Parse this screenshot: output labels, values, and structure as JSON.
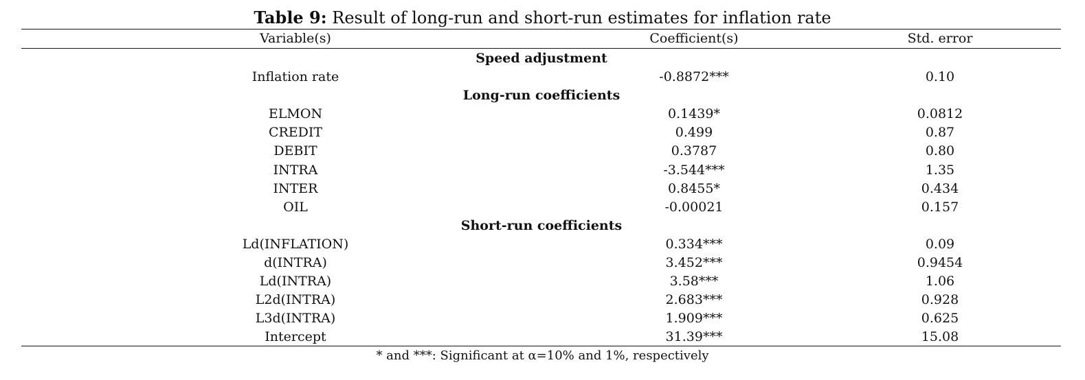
{
  "caption": {
    "label": "Table 9:",
    "text": " Result of long-run and short-run estimates for inflation rate"
  },
  "header": {
    "variable": "Variable(s)",
    "coefficient": "Coefficient(s)",
    "std_error": "Std. error"
  },
  "sections": [
    {
      "title": "Speed adjustment",
      "rows": [
        {
          "variable": "Inflation rate",
          "coefficient": "-0.8872***",
          "std_error": "0.10"
        }
      ]
    },
    {
      "title": "Long-run coefficients",
      "rows": [
        {
          "variable": "ELMON",
          "coefficient": "0.1439*",
          "std_error": "0.0812"
        },
        {
          "variable": "CREDIT",
          "coefficient": "0.499",
          "std_error": "0.87"
        },
        {
          "variable": "DEBIT",
          "coefficient": "0.3787",
          "std_error": "0.80"
        },
        {
          "variable": "INTRA",
          "coefficient": "-3.544***",
          "std_error": "1.35"
        },
        {
          "variable": "INTER",
          "coefficient": "0.8455*",
          "std_error": "0.434"
        },
        {
          "variable": "OIL",
          "coefficient": "-0.00021",
          "std_error": "0.157"
        }
      ]
    },
    {
      "title": "Short-run coefficients",
      "rows": [
        {
          "variable": "Ld(INFLATION)",
          "coefficient": "0.334***",
          "std_error": "0.09"
        },
        {
          "variable": "d(INTRA)",
          "coefficient": "3.452***",
          "std_error": "0.9454"
        },
        {
          "variable": "Ld(INTRA)",
          "coefficient": "3.58***",
          "std_error": "1.06"
        },
        {
          "variable": "L2d(INTRA)",
          "coefficient": "2.683***",
          "std_error": "0.928"
        },
        {
          "variable": "L3d(INTRA)",
          "coefficient": "1.909***",
          "std_error": "0.625"
        },
        {
          "variable": "Intercept",
          "coefficient": "31.39***",
          "std_error": "15.08"
        }
      ]
    }
  ],
  "note": "* and ***: Significant at α=10% and 1%, respectively"
}
